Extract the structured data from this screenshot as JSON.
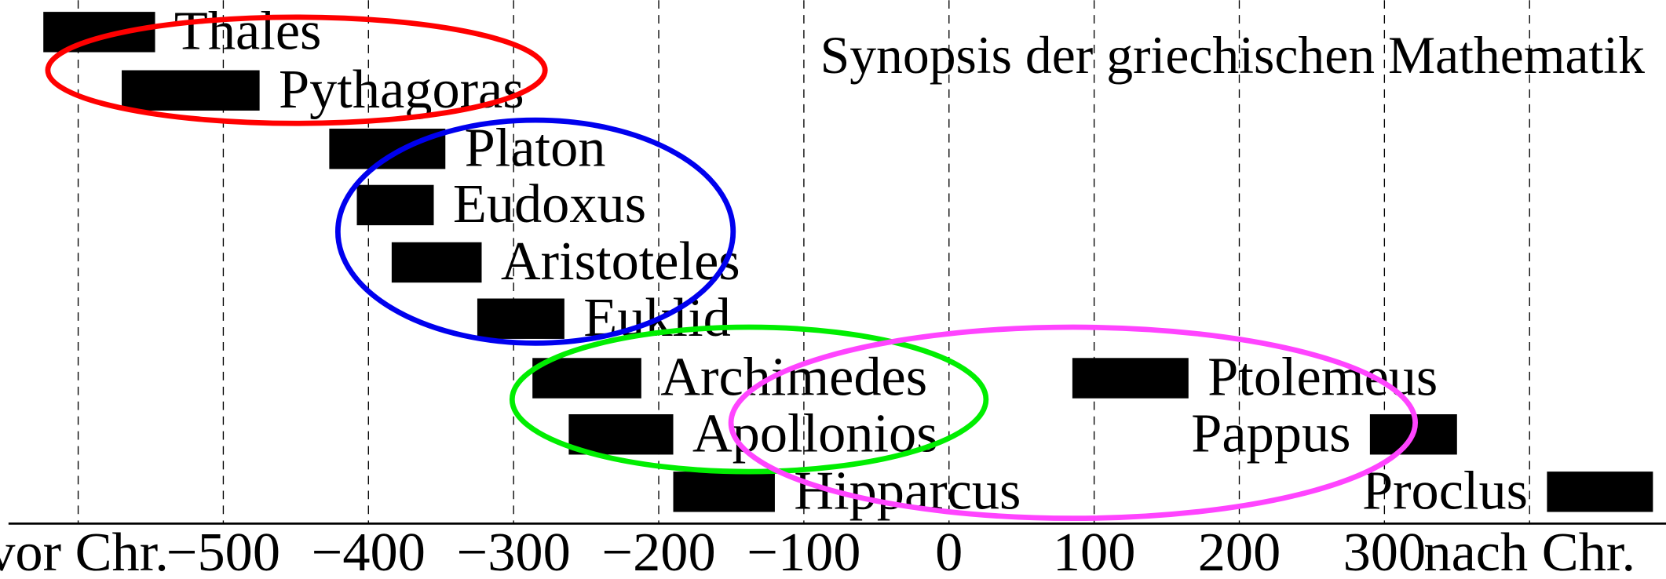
{
  "chart_data": {
    "type": "range",
    "title": "Synopsis der griechischen Mathematik",
    "color": "#000000",
    "bars": [
      {
        "name": "Thales",
        "start": -624,
        "end": -547
      },
      {
        "name": "Pythagoras",
        "start": -570,
        "end": -475
      },
      {
        "name": "Platon",
        "start": -427,
        "end": -347
      },
      {
        "name": "Eudoxus",
        "start": -408,
        "end": -355
      },
      {
        "name": "Aristoteles",
        "start": -384,
        "end": -322
      },
      {
        "name": "Euklid",
        "start": -325,
        "end": -265
      },
      {
        "name": "Archimedes",
        "start": -287,
        "end": -212
      },
      {
        "name": "Apollonios",
        "start": -262,
        "end": -190
      },
      {
        "name": "Hipparcus",
        "start": -190,
        "end": -120
      },
      {
        "name": "Ptolemeus",
        "start": 85,
        "end": 165
      },
      {
        "name": "Pappus",
        "start": 290,
        "end": 350
      },
      {
        "name": "Proclus",
        "start": 412,
        "end": 485
      }
    ],
    "xlim": [
      -648,
      494
    ],
    "xticks": [
      {
        "value": -600,
        "label": "vor Chr."
      },
      {
        "value": -500,
        "label": "−500"
      },
      {
        "value": -400,
        "label": "−400"
      },
      {
        "value": -300,
        "label": "−300"
      },
      {
        "value": -200,
        "label": "−200"
      },
      {
        "value": -100,
        "label": "−100"
      },
      0,
      100,
      200,
      300,
      {
        "value": 400,
        "label": "nach Chr."
      }
    ],
    "grid": true
  }
}
